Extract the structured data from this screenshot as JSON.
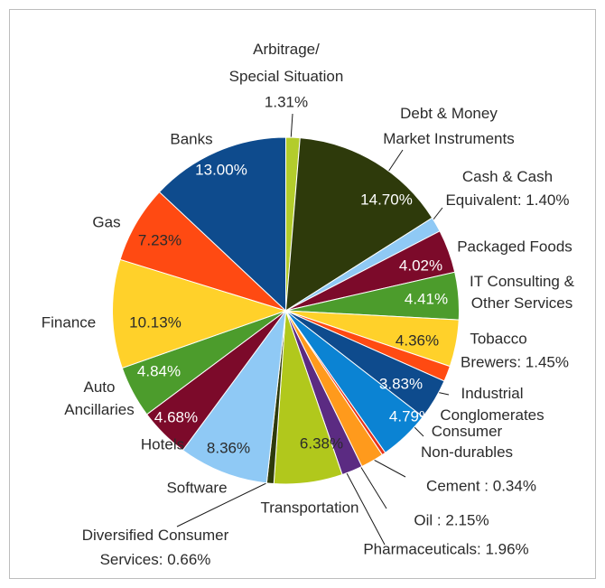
{
  "chart_data": {
    "type": "pie",
    "categories": [
      "Arbitrage/\nSpecial Situation",
      "Debt & Money\nMarket Instruments",
      "Cash & Cash\nEquivalent: 1.40%",
      "Packaged Foods",
      "IT Consulting &\nOther Services",
      "Tobacco",
      "Brewers: 1.45%",
      "Industrial\nConglomerates",
      "Consumer\nNon-durables",
      "Cement : 0.34%",
      "Oil : 2.15%",
      "Pharmaceuticals: 1.96%",
      "Transportation",
      "Diversified Consumer\nServices: 0.66%",
      "Software",
      "Hotels",
      "Auto\nAncillaries",
      "Finance",
      "Gas",
      "Banks"
    ],
    "values": [
      1.31,
      14.7,
      1.4,
      4.02,
      4.41,
      4.36,
      1.45,
      3.83,
      4.79,
      0.34,
      2.15,
      1.96,
      6.38,
      0.66,
      8.36,
      4.68,
      4.84,
      10.13,
      7.23,
      13.0
    ],
    "value_labels": [
      "1.31%",
      "14.70%",
      null,
      "4.02%",
      "4.41%",
      "4.36%",
      null,
      "3.83%",
      "4.79%",
      null,
      null,
      null,
      "6.38%",
      null,
      "8.36%",
      "4.68%",
      "4.84%",
      "10.13%",
      "7.23%",
      "13.00%"
    ],
    "colors": [
      "#b3cc2c",
      "#2e3a0b",
      "#8fc9f5",
      "#7c0a2a",
      "#4c9c2c",
      "#ffd12a",
      "#ff4a12",
      "#0e4b8d",
      "#0b83d3",
      "#e8321a",
      "#ff9a1c",
      "#5b2b82",
      "#b1c81c",
      "#2e3a0b",
      "#8fc9f5",
      "#7c0a2a",
      "#4c9c2c",
      "#ffd12a",
      "#ff4a12",
      "#0e4b8d"
    ]
  }
}
